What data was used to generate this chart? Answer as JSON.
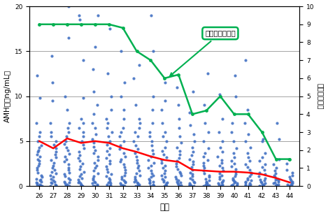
{
  "ages": [
    26,
    27,
    28,
    29,
    30,
    31,
    32,
    33,
    34,
    35,
    36,
    37,
    38,
    39,
    40,
    41,
    42,
    43,
    44
  ],
  "amh_median": [
    5.0,
    4.2,
    5.3,
    4.8,
    5.0,
    4.8,
    4.2,
    3.8,
    3.3,
    2.9,
    2.7,
    1.8,
    1.7,
    1.6,
    1.6,
    1.5,
    1.3,
    0.9,
    0.4
  ],
  "egg_median": [
    9.0,
    9.0,
    9.0,
    9.0,
    9.0,
    9.0,
    8.8,
    7.5,
    7.0,
    6.0,
    6.2,
    4.0,
    4.2,
    5.0,
    4.0,
    4.0,
    3.0,
    1.5,
    1.5
  ],
  "dot_data": {
    "26": [
      0.0,
      0.0,
      0.1,
      0.2,
      0.2,
      0.3,
      0.4,
      0.5,
      0.6,
      0.7,
      0.8,
      1.0,
      1.2,
      1.5,
      1.8,
      2.0,
      2.3,
      2.5,
      2.8,
      3.0,
      3.3,
      3.5,
      3.8,
      4.0,
      4.3,
      4.5,
      5.0,
      5.5,
      6.0,
      7.0,
      9.8,
      12.3
    ],
    "27": [
      0.0,
      0.0,
      0.1,
      0.2,
      0.3,
      0.4,
      0.5,
      0.6,
      0.8,
      1.0,
      1.2,
      1.4,
      1.6,
      1.8,
      2.0,
      2.3,
      2.6,
      2.9,
      3.2,
      3.5,
      3.8,
      4.2,
      4.6,
      5.0,
      5.5,
      6.0,
      7.0,
      9.5,
      11.5,
      14.5
    ],
    "28": [
      0.0,
      0.0,
      0.1,
      0.2,
      0.3,
      0.4,
      0.5,
      0.7,
      0.9,
      1.1,
      1.3,
      1.5,
      1.8,
      2.0,
      2.4,
      2.7,
      3.0,
      3.3,
      3.6,
      4.0,
      4.3,
      4.7,
      5.0,
      5.5,
      6.0,
      6.5,
      7.0,
      8.5,
      10.0,
      16.5,
      20.0
    ],
    "29": [
      0.0,
      0.0,
      0.1,
      0.2,
      0.3,
      0.4,
      0.5,
      0.7,
      0.9,
      1.1,
      1.3,
      1.6,
      1.9,
      2.2,
      2.5,
      2.8,
      3.1,
      3.4,
      3.8,
      4.2,
      4.6,
      5.0,
      5.5,
      6.0,
      6.5,
      7.0,
      7.5,
      9.8,
      14.0,
      18.5,
      19.0
    ],
    "30": [
      0.0,
      0.0,
      0.1,
      0.2,
      0.3,
      0.4,
      0.5,
      0.7,
      0.9,
      1.1,
      1.4,
      1.7,
      2.0,
      2.3,
      2.6,
      2.9,
      3.3,
      3.7,
      4.0,
      4.4,
      4.8,
      5.2,
      5.8,
      6.5,
      7.0,
      8.0,
      9.0,
      10.5,
      13.0,
      15.5,
      19.0
    ],
    "31": [
      0.0,
      0.0,
      0.1,
      0.2,
      0.3,
      0.4,
      0.5,
      0.7,
      0.9,
      1.1,
      1.3,
      1.6,
      1.9,
      2.2,
      2.5,
      2.8,
      3.1,
      3.5,
      3.9,
      4.2,
      4.6,
      5.0,
      5.5,
      6.0,
      6.5,
      7.0,
      7.5,
      8.5,
      10.0,
      12.5,
      17.5
    ],
    "32": [
      0.0,
      0.0,
      0.1,
      0.2,
      0.3,
      0.4,
      0.5,
      0.6,
      0.8,
      1.0,
      1.2,
      1.5,
      1.8,
      2.1,
      2.4,
      2.7,
      3.0,
      3.3,
      3.7,
      4.1,
      4.5,
      5.0,
      5.5,
      6.0,
      6.5,
      7.5,
      8.5,
      10.0,
      11.5,
      15.0
    ],
    "33": [
      0.0,
      0.0,
      0.1,
      0.2,
      0.3,
      0.4,
      0.5,
      0.6,
      0.8,
      1.0,
      1.2,
      1.4,
      1.7,
      2.0,
      2.3,
      2.6,
      2.9,
      3.3,
      3.7,
      4.1,
      4.5,
      5.0,
      5.5,
      6.0,
      6.5,
      7.0,
      7.5,
      9.0,
      12.0,
      13.5
    ],
    "34": [
      0.0,
      0.0,
      0.1,
      0.2,
      0.3,
      0.4,
      0.5,
      0.6,
      0.8,
      1.0,
      1.2,
      1.4,
      1.7,
      2.0,
      2.3,
      2.6,
      2.9,
      3.3,
      3.6,
      4.0,
      4.5,
      5.0,
      5.5,
      6.0,
      7.0,
      8.5,
      10.0,
      15.0,
      19.0
    ],
    "35": [
      0.0,
      0.0,
      0.1,
      0.2,
      0.3,
      0.4,
      0.5,
      0.6,
      0.8,
      1.0,
      1.2,
      1.4,
      1.7,
      2.0,
      2.3,
      2.6,
      2.9,
      3.2,
      3.5,
      3.9,
      4.3,
      5.0,
      5.5,
      6.0,
      7.0,
      8.5,
      9.5,
      11.5
    ],
    "36": [
      0.0,
      0.0,
      0.1,
      0.2,
      0.3,
      0.4,
      0.5,
      0.6,
      0.8,
      1.0,
      1.2,
      1.4,
      1.6,
      1.9,
      2.2,
      2.5,
      2.8,
      3.1,
      3.5,
      3.9,
      4.3,
      4.8,
      5.5,
      6.5,
      7.5,
      9.0,
      11.0
    ],
    "37": [
      0.0,
      0.0,
      0.1,
      0.2,
      0.2,
      0.3,
      0.4,
      0.5,
      0.7,
      0.9,
      1.1,
      1.3,
      1.5,
      1.8,
      2.1,
      2.4,
      2.7,
      3.0,
      3.4,
      3.8,
      4.3,
      5.0,
      5.8,
      6.8,
      8.2,
      10.5
    ],
    "38": [
      0.0,
      0.0,
      0.1,
      0.2,
      0.2,
      0.3,
      0.4,
      0.5,
      0.6,
      0.8,
      1.0,
      1.2,
      1.4,
      1.7,
      2.0,
      2.3,
      2.6,
      2.9,
      3.3,
      3.7,
      4.2,
      5.0,
      6.0,
      7.0,
      9.0,
      12.5
    ],
    "39": [
      0.0,
      0.0,
      0.1,
      0.2,
      0.2,
      0.3,
      0.4,
      0.5,
      0.6,
      0.8,
      1.0,
      1.2,
      1.4,
      1.7,
      2.0,
      2.3,
      2.6,
      2.9,
      3.3,
      3.8,
      4.3,
      5.0,
      6.0,
      7.5,
      10.2
    ],
    "40": [
      0.0,
      0.0,
      0.1,
      0.2,
      0.2,
      0.3,
      0.4,
      0.5,
      0.6,
      0.7,
      0.9,
      1.1,
      1.3,
      1.6,
      1.9,
      2.2,
      2.5,
      2.8,
      3.2,
      3.7,
      4.2,
      5.0,
      6.0,
      7.0,
      10.0,
      12.3
    ],
    "41": [
      0.0,
      0.0,
      0.1,
      0.2,
      0.2,
      0.3,
      0.4,
      0.5,
      0.6,
      0.7,
      0.9,
      1.1,
      1.3,
      1.5,
      1.8,
      2.1,
      2.4,
      2.8,
      3.2,
      3.7,
      4.3,
      5.0,
      5.8,
      7.0,
      8.5,
      14.0
    ],
    "42": [
      0.0,
      0.0,
      0.1,
      0.2,
      0.2,
      0.3,
      0.4,
      0.5,
      0.6,
      0.7,
      0.9,
      1.1,
      1.3,
      1.5,
      1.8,
      2.1,
      2.4,
      2.8,
      3.2,
      3.7,
      5.0,
      5.2
    ],
    "43": [
      0.0,
      0.0,
      0.1,
      0.2,
      0.2,
      0.3,
      0.4,
      0.5,
      0.6,
      0.7,
      0.8,
      1.0,
      1.2,
      1.4,
      1.7,
      2.0,
      2.4,
      3.0,
      5.2,
      7.0
    ],
    "44": [
      0.0,
      0.0,
      0.1,
      0.2,
      0.2,
      0.3,
      0.4,
      0.5,
      0.6,
      0.8,
      1.0,
      1.2,
      1.5,
      1.8,
      2.5,
      3.0
    ]
  },
  "dot_color": "#4472C4",
  "green_color": "#00B050",
  "red_color": "#FF0000",
  "bg_color": "#FFFFFF",
  "ylabel_left": "AMH値（ng/mL）",
  "ylabel_right": "採卵数（個）",
  "xlabel": "年齢",
  "ylim_left": [
    0,
    20
  ],
  "ylim_right": [
    0,
    10
  ],
  "annotation_text": "採卵数の中央値",
  "figsize": [
    4.69,
    3.09
  ],
  "dpi": 100
}
